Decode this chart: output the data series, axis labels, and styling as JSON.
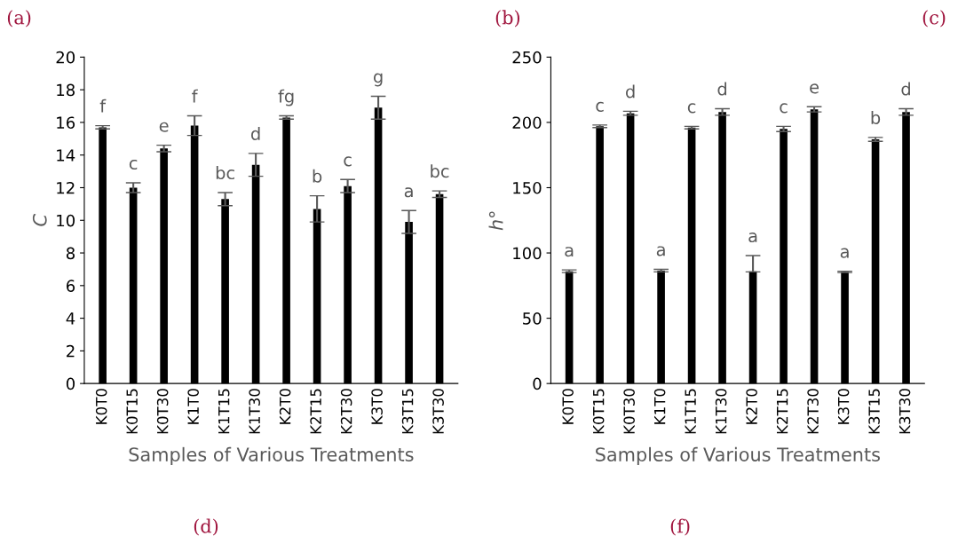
{
  "chart_data": [
    {
      "type": "bar",
      "ylabel": "C",
      "xlabel": "Samples of Various Treatments",
      "categories": [
        "K0T0",
        "K0T15",
        "K0T30",
        "K1T0",
        "K1T15",
        "K1T30",
        "K2T0",
        "K2T15",
        "K2T30",
        "K3T0",
        "K3T15",
        "K3T30"
      ],
      "series": [
        {
          "color": "#000000",
          "values": [
            15.7,
            12.0,
            14.4,
            15.8,
            11.3,
            13.4,
            16.3,
            10.7,
            12.1,
            16.9,
            9.9,
            11.6
          ],
          "errors": [
            0.1,
            0.3,
            0.2,
            0.6,
            0.4,
            0.7,
            0.1,
            0.8,
            0.4,
            0.7,
            0.7,
            0.2
          ],
          "value_labels": [
            "f",
            "c",
            "e",
            "f",
            "bc",
            "d",
            "fg",
            "b",
            "c",
            "g",
            "a",
            "bc"
          ]
        }
      ],
      "ylim": [
        0,
        20
      ],
      "yticks": [
        0,
        2,
        4,
        6,
        8,
        10,
        12,
        14,
        16,
        18,
        20
      ],
      "grid": false,
      "legend": false,
      "annotations": [
        "(a)",
        "(d)"
      ]
    },
    {
      "type": "bar",
      "ylabel": "h°",
      "xlabel": "Samples of Various Treatments",
      "categories": [
        "K0T0",
        "K0T15",
        "K0T30",
        "K1T0",
        "K1T15",
        "K1T30",
        "K2T0",
        "K2T15",
        "K2T30",
        "K3T0",
        "K3T15",
        "K3T30"
      ],
      "series": [
        {
          "color": "#000000",
          "values": [
            86,
            197,
            207,
            86.5,
            196,
            208,
            86,
            195,
            210,
            85.5,
            187,
            208
          ],
          "errors": [
            1,
            1,
            1.5,
            1,
            1,
            2.5,
            [
              85.5,
              98
            ],
            2,
            2,
            0.5,
            1.5,
            2.5
          ],
          "value_labels": [
            "a",
            "c",
            "d",
            "a",
            "c",
            "d",
            "a",
            "c",
            "e",
            "a",
            "b",
            "d"
          ]
        }
      ],
      "ylim": [
        0,
        250
      ],
      "yticks": [
        0,
        50,
        100,
        150,
        200,
        250
      ],
      "grid": false,
      "legend": false,
      "annotations": [
        "(b)",
        "(c)",
        "(f)"
      ]
    }
  ]
}
